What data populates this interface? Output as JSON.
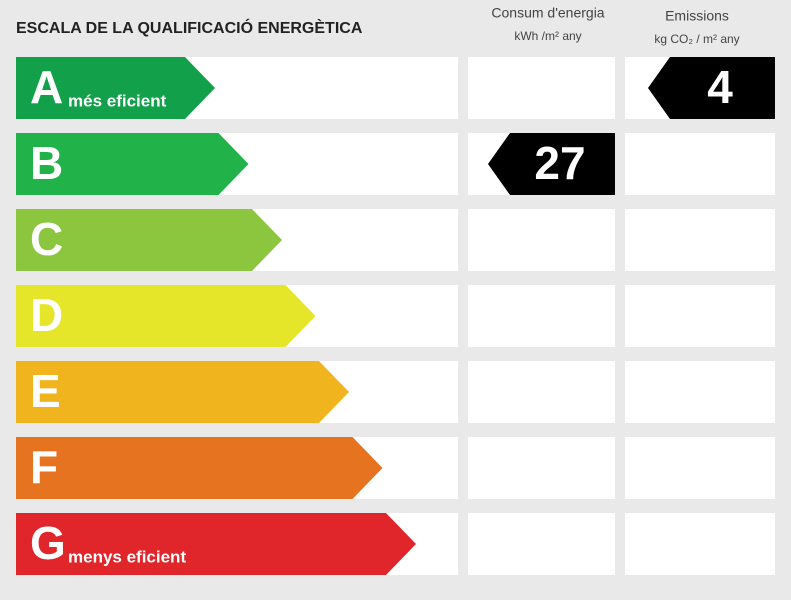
{
  "title": "ESCALA DE LA QUALIFICACIÓ ENERGÈTICA",
  "columns": [
    {
      "title": "Consum d'energia",
      "unit": "kWh /m² any"
    },
    {
      "title": "Emissions",
      "unit": "kg CO₂ / m² any"
    }
  ],
  "ratings": [
    {
      "letter": "A",
      "label": "més eficient",
      "color": "#13a04a"
    },
    {
      "letter": "B",
      "color": "#22b24a"
    },
    {
      "letter": "C",
      "color": "#8cc63f"
    },
    {
      "letter": "D",
      "color": "#e5e52a"
    },
    {
      "letter": "E",
      "color": "#f0b51e"
    },
    {
      "letter": "F",
      "color": "#e5731f"
    },
    {
      "letter": "G",
      "label": "menys eficient",
      "color": "#e0262a"
    }
  ],
  "indicators": [
    {
      "rating": "B",
      "value": 27
    },
    {
      "rating": "A",
      "value": 4
    }
  ]
}
